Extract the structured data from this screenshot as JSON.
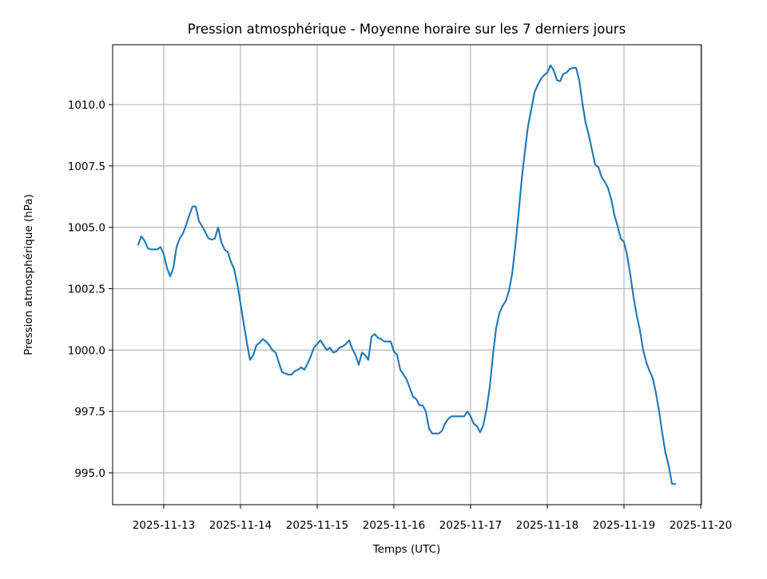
{
  "chart_data": {
    "type": "line",
    "title": "Pression atmosphérique - Moyenne horaire sur les 7 derniers jours",
    "xlabel": "Temps (UTC)",
    "ylabel": "Pression atmosphérique (hPa)",
    "grid": true,
    "color": "#1f77b4",
    "xlim": [
      "2025-11-12 08:00",
      "2025-11-20 00:15"
    ],
    "ylim": [
      993.7,
      1012.44
    ],
    "x_ticks": [
      "2025-11-13",
      "2025-11-14",
      "2025-11-15",
      "2025-11-16",
      "2025-11-17",
      "2025-11-18",
      "2025-11-19",
      "2025-11-20"
    ],
    "y_ticks": [
      "995.0",
      "997.5",
      "1000.0",
      "1002.5",
      "1005.0",
      "1007.5",
      "1010.0"
    ],
    "series": [
      {
        "start": "2025-11-12 16:00",
        "interval_hours": 1,
        "values": [
          1004.3,
          1004.63,
          1004.45,
          1004.15,
          1004.1,
          1004.1,
          1004.1,
          1004.2,
          1003.9,
          1003.35,
          1003.0,
          1003.35,
          1004.2,
          1004.55,
          1004.75,
          1005.1,
          1005.5,
          1005.85,
          1005.85,
          1005.25,
          1005.05,
          1004.8,
          1004.55,
          1004.5,
          1004.55,
          1005.0,
          1004.4,
          1004.1,
          1004.0,
          1003.6,
          1003.3,
          1002.7,
          1001.9,
          1001.1,
          1000.3,
          999.6,
          999.8,
          1000.2,
          1000.3,
          1000.45,
          1000.35,
          1000.2,
          1000.0,
          999.9,
          999.5,
          999.1,
          999.05,
          999.0,
          999.0,
          999.15,
          999.2,
          999.3,
          999.2,
          999.45,
          999.75,
          1000.1,
          1000.25,
          1000.4,
          1000.2,
          1000.0,
          1000.1,
          999.9,
          999.95,
          1000.1,
          1000.15,
          1000.25,
          1000.4,
          1000.05,
          999.8,
          999.4,
          999.9,
          999.8,
          999.6,
          1000.55,
          1000.65,
          1000.5,
          1000.45,
          1000.35,
          1000.35,
          1000.35,
          999.95,
          999.8,
          999.2,
          999.0,
          998.8,
          998.45,
          998.1,
          998.0,
          997.75,
          997.75,
          997.5,
          996.8,
          996.6,
          996.6,
          996.6,
          996.7,
          997.0,
          997.2,
          997.3,
          997.3,
          997.3,
          997.3,
          997.3,
          997.5,
          997.3,
          997.0,
          996.9,
          996.65,
          996.95,
          997.6,
          998.5,
          999.8,
          1000.9,
          1001.5,
          1001.8,
          1002.0,
          1002.4,
          1003.1,
          1004.25,
          1005.55,
          1006.95,
          1008.1,
          1009.15,
          1009.8,
          1010.5,
          1010.8,
          1011.05,
          1011.2,
          1011.3,
          1011.6,
          1011.4,
          1011.0,
          1010.95,
          1011.25,
          1011.3,
          1011.45,
          1011.5,
          1011.5,
          1011.0,
          1010.05,
          1009.25,
          1008.75,
          1008.15,
          1007.55,
          1007.45,
          1007.05,
          1006.85,
          1006.6,
          1006.15,
          1005.5,
          1005.05,
          1004.55,
          1004.4,
          1003.85,
          1003.05,
          1002.15,
          1001.4,
          1000.8,
          1000.0,
          999.5,
          999.15,
          998.85,
          998.25,
          997.5,
          996.6,
          995.8,
          995.3,
          994.55,
          994.55
        ]
      }
    ]
  }
}
